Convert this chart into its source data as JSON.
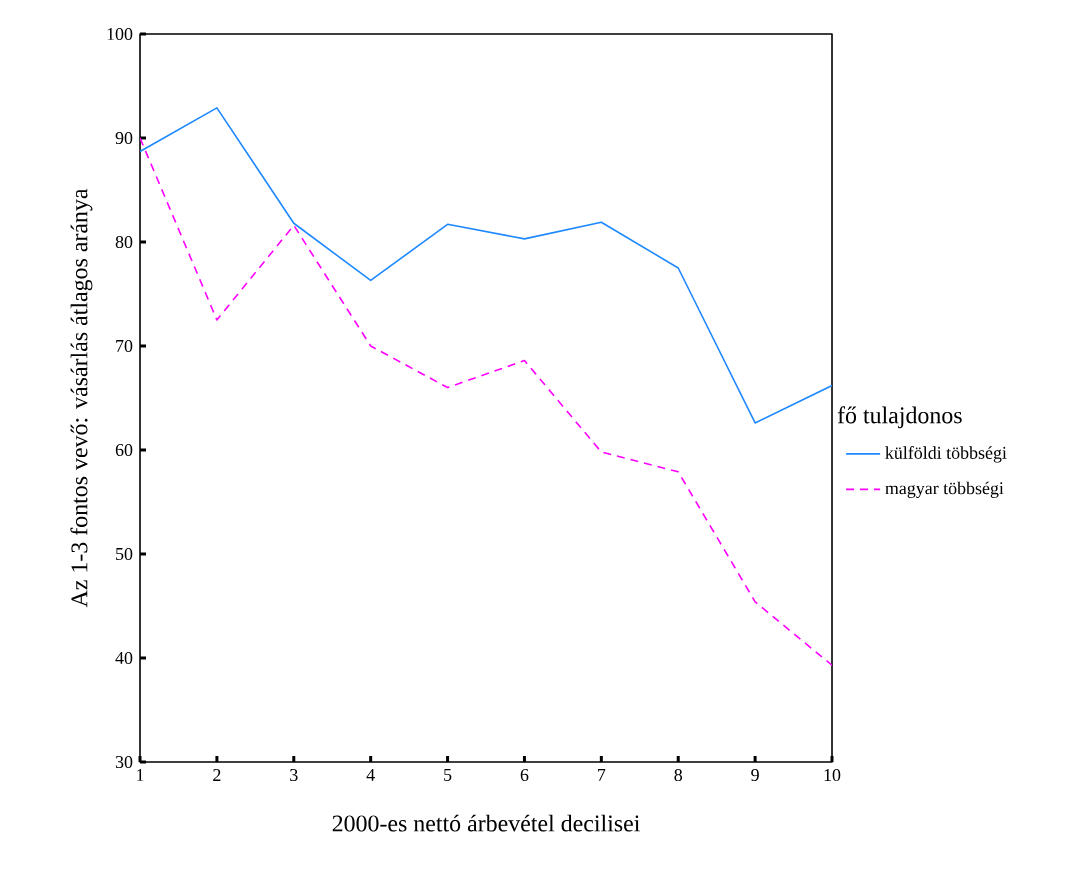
{
  "chart_data": {
    "type": "line",
    "xlabel": "2000-es nettó árbevétel decilisei",
    "ylabel": "Az 1-3 fontos vevő: vásárlás átlagos aránya",
    "legend_title": "fő tulajdonos",
    "x": [
      1,
      2,
      3,
      4,
      5,
      6,
      7,
      8,
      9,
      10
    ],
    "series": [
      {
        "name": "külföldi többségi",
        "color": "#1e88ff",
        "line_style": "solid",
        "values": [
          88.7,
          92.9,
          81.8,
          76.3,
          81.7,
          80.3,
          81.9,
          77.5,
          62.6,
          66.2
        ]
      },
      {
        "name": "magyar többségi",
        "color": "#ff00ff",
        "line_style": "dashed",
        "values": [
          90.0,
          72.5,
          81.6,
          70.0,
          66.0,
          68.6,
          59.8,
          57.9,
          45.4,
          39.3
        ]
      }
    ],
    "xlim": [
      1,
      10
    ],
    "xticks": [
      1,
      2,
      3,
      4,
      5,
      6,
      7,
      8,
      9,
      10
    ],
    "ylim": [
      30,
      100
    ],
    "yticks": [
      30,
      40,
      50,
      60,
      70,
      80,
      90,
      100
    ],
    "grid": false,
    "legend": "right",
    "marker": "none"
  }
}
